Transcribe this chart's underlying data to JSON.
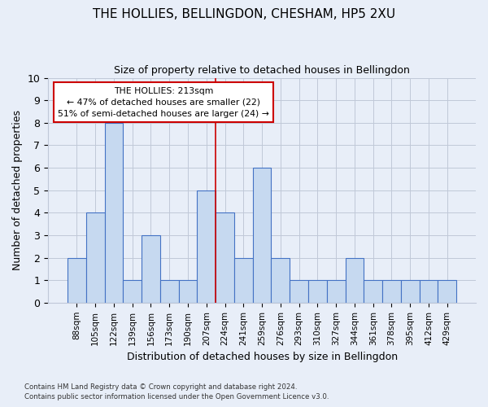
{
  "title": "THE HOLLIES, BELLINGDON, CHESHAM, HP5 2XU",
  "subtitle": "Size of property relative to detached houses in Bellingdon",
  "xlabel": "Distribution of detached houses by size in Bellingdon",
  "ylabel": "Number of detached properties",
  "bar_labels": [
    "88sqm",
    "105sqm",
    "122sqm",
    "139sqm",
    "156sqm",
    "173sqm",
    "190sqm",
    "207sqm",
    "224sqm",
    "241sqm",
    "259sqm",
    "276sqm",
    "293sqm",
    "310sqm",
    "327sqm",
    "344sqm",
    "361sqm",
    "378sqm",
    "395sqm",
    "412sqm",
    "429sqm"
  ],
  "bar_heights": [
    2,
    4,
    8,
    1,
    3,
    1,
    1,
    5,
    4,
    2,
    6,
    2,
    1,
    1,
    1,
    2,
    1,
    1,
    1,
    1,
    1
  ],
  "bar_color": "#c6d9f0",
  "bar_edge_color": "#4472c4",
  "ylim": [
    0,
    10
  ],
  "yticks": [
    0,
    1,
    2,
    3,
    4,
    5,
    6,
    7,
    8,
    9,
    10
  ],
  "annotation_text": "THE HOLLIES: 213sqm\n← 47% of detached houses are smaller (22)\n51% of semi-detached houses are larger (24) →",
  "vline_x": 7.5,
  "vline_color": "#cc0000",
  "annotation_box_color": "white",
  "annotation_box_edge_color": "#cc0000",
  "footer_line1": "Contains HM Land Registry data © Crown copyright and database right 2024.",
  "footer_line2": "Contains public sector information licensed under the Open Government Licence v3.0.",
  "grid_color": "#c0c8d8",
  "background_color": "#e8eef8"
}
